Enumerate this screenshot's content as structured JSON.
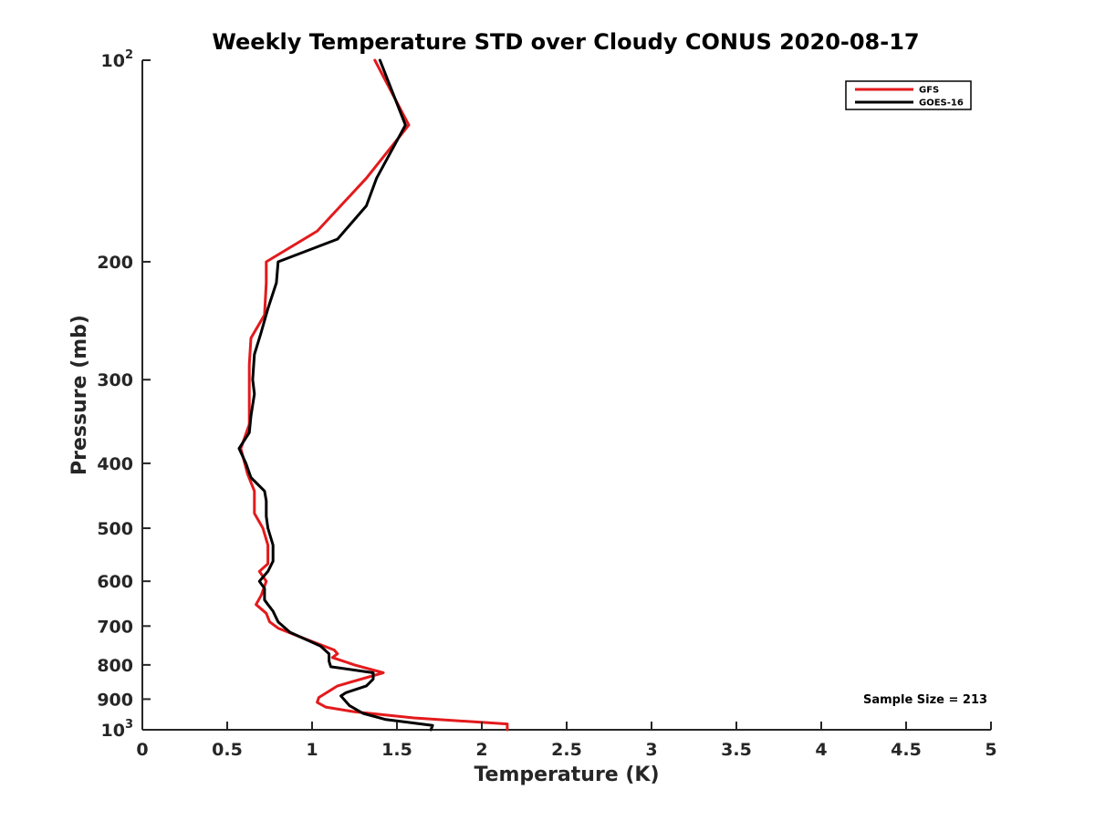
{
  "chart_data": {
    "type": "line",
    "title": "Weekly Temperature STD over Cloudy CONUS 2020-08-17",
    "xlabel": "Temperature (K)",
    "ylabel": "Pressure (mb)",
    "xlim": [
      0,
      5
    ],
    "ylim": [
      100,
      1000
    ],
    "yscale": "log",
    "yreversed": true,
    "grid": false,
    "legend_position": "top-right",
    "x_ticks": [
      0,
      0.5,
      1,
      1.5,
      2,
      2.5,
      3,
      3.5,
      4,
      4.5,
      5
    ],
    "x_tick_labels": [
      "0",
      "0.5",
      "1",
      "1.5",
      "2",
      "2.5",
      "3",
      "3.5",
      "4",
      "4.5",
      "5"
    ],
    "y_ticks": [
      {
        "value": 100,
        "base": "10",
        "exp": "2"
      },
      {
        "value": 200,
        "base": "200",
        "exp": ""
      },
      {
        "value": 300,
        "base": "300",
        "exp": ""
      },
      {
        "value": 400,
        "base": "400",
        "exp": ""
      },
      {
        "value": 500,
        "base": "500",
        "exp": ""
      },
      {
        "value": 600,
        "base": "600",
        "exp": ""
      },
      {
        "value": 700,
        "base": "700",
        "exp": ""
      },
      {
        "value": 800,
        "base": "800",
        "exp": ""
      },
      {
        "value": 900,
        "base": "900",
        "exp": ""
      },
      {
        "value": 1000,
        "base": "10",
        "exp": "3"
      }
    ],
    "series": [
      {
        "name": "GFS",
        "color": "#e31a1c",
        "points": [
          [
            1.37,
            100
          ],
          [
            1.57,
            125
          ],
          [
            1.32,
            150
          ],
          [
            1.03,
            180
          ],
          [
            0.73,
            200
          ],
          [
            0.73,
            215
          ],
          [
            0.72,
            240
          ],
          [
            0.64,
            260
          ],
          [
            0.63,
            285
          ],
          [
            0.63,
            320
          ],
          [
            0.63,
            350
          ],
          [
            0.58,
            380
          ],
          [
            0.62,
            415
          ],
          [
            0.66,
            440
          ],
          [
            0.66,
            475
          ],
          [
            0.71,
            500
          ],
          [
            0.74,
            530
          ],
          [
            0.74,
            565
          ],
          [
            0.69,
            580
          ],
          [
            0.73,
            600
          ],
          [
            0.7,
            630
          ],
          [
            0.67,
            650
          ],
          [
            0.73,
            670
          ],
          [
            0.75,
            690
          ],
          [
            0.8,
            705
          ],
          [
            0.95,
            730
          ],
          [
            1.13,
            760
          ],
          [
            1.15,
            770
          ],
          [
            1.12,
            780
          ],
          [
            1.25,
            800
          ],
          [
            1.42,
            822
          ],
          [
            1.15,
            860
          ],
          [
            1.04,
            895
          ],
          [
            1.03,
            910
          ],
          [
            1.08,
            925
          ],
          [
            1.25,
            940
          ],
          [
            1.6,
            960
          ],
          [
            2.15,
            980
          ],
          [
            2.15,
            1000
          ]
        ]
      },
      {
        "name": "GOES-16",
        "color": "#000000",
        "points": [
          [
            1.4,
            100
          ],
          [
            1.55,
            125
          ],
          [
            1.38,
            150
          ],
          [
            1.32,
            165
          ],
          [
            1.15,
            185
          ],
          [
            0.8,
            200
          ],
          [
            0.79,
            215
          ],
          [
            0.74,
            235
          ],
          [
            0.7,
            255
          ],
          [
            0.66,
            275
          ],
          [
            0.65,
            300
          ],
          [
            0.66,
            315
          ],
          [
            0.64,
            340
          ],
          [
            0.63,
            360
          ],
          [
            0.57,
            380
          ],
          [
            0.61,
            400
          ],
          [
            0.64,
            420
          ],
          [
            0.72,
            440
          ],
          [
            0.73,
            455
          ],
          [
            0.73,
            480
          ],
          [
            0.74,
            500
          ],
          [
            0.77,
            530
          ],
          [
            0.77,
            560
          ],
          [
            0.74,
            580
          ],
          [
            0.69,
            600
          ],
          [
            0.72,
            615
          ],
          [
            0.72,
            640
          ],
          [
            0.74,
            650
          ],
          [
            0.77,
            665
          ],
          [
            0.8,
            690
          ],
          [
            0.87,
            715
          ],
          [
            1.05,
            750
          ],
          [
            1.1,
            770
          ],
          [
            1.1,
            790
          ],
          [
            1.11,
            805
          ],
          [
            1.36,
            822
          ],
          [
            1.36,
            840
          ],
          [
            1.32,
            860
          ],
          [
            1.2,
            880
          ],
          [
            1.17,
            890
          ],
          [
            1.22,
            920
          ],
          [
            1.3,
            945
          ],
          [
            1.43,
            965
          ],
          [
            1.71,
            985
          ],
          [
            1.7,
            1000
          ]
        ]
      }
    ],
    "annotation": "Sample Size = 213"
  }
}
